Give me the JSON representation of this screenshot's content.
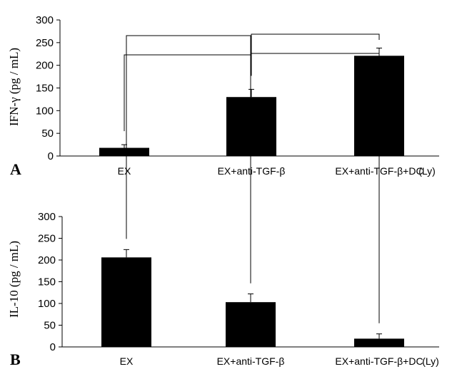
{
  "chart_data": [
    {
      "type": "bar",
      "panel_label": "A",
      "categories": [
        "EX",
        "EX+anti-TGF-β",
        "EX+anti-TGF-β+DC"
      ],
      "values": [
        18,
        130,
        221
      ],
      "errors": [
        7,
        17,
        17
      ],
      "ylabel": "IFN-γ (pg / mL)",
      "ylim": [
        0,
        300
      ],
      "yticks": [
        0,
        50,
        100,
        150,
        200,
        250,
        300
      ],
      "suffix_label": "(Ly)",
      "brackets": [
        [
          0,
          1
        ],
        [
          1,
          2
        ]
      ],
      "grid": false,
      "bar_color": "#000000"
    },
    {
      "type": "bar",
      "panel_label": "B",
      "categories": [
        "EX",
        "EX+anti-TGF-β",
        "EX+anti-TGF-β+DC"
      ],
      "values": [
        206,
        103,
        19
      ],
      "errors": [
        18,
        19,
        11
      ],
      "ylabel": "IL-10 (pg / mL)",
      "ylim": [
        0,
        300
      ],
      "yticks": [
        0,
        50,
        100,
        150,
        200,
        250,
        300
      ],
      "suffix_label": "(Ly)",
      "brackets": [
        [
          0,
          1
        ],
        [
          1,
          2
        ]
      ],
      "grid": false,
      "bar_color": "#000000"
    }
  ]
}
